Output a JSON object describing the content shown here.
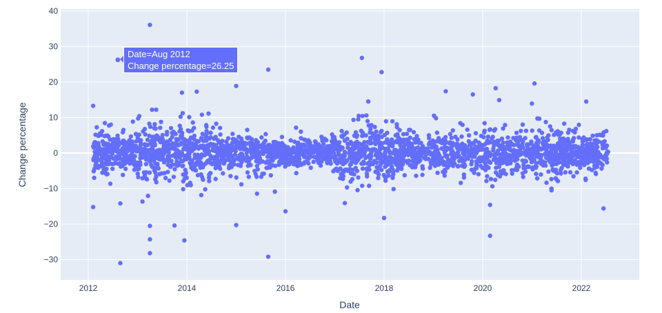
{
  "chart_data": {
    "type": "scatter",
    "title": "",
    "xlabel": "Date",
    "ylabel": "Change percentage",
    "x_tick_labels": [
      "2012",
      "2014",
      "2016",
      "2018",
      "2020",
      "2022"
    ],
    "y_tick_labels": [
      "40",
      "30",
      "20",
      "10",
      "0",
      "−10",
      "−20",
      "−30"
    ],
    "y_ticks": [
      40,
      30,
      20,
      10,
      0,
      -10,
      -20,
      -30
    ],
    "x_ticks": [
      2012,
      2014,
      2016,
      2018,
      2020,
      2022
    ],
    "xlim": [
      2011.45,
      2023.15
    ],
    "ylim": [
      -35.5,
      40.6
    ],
    "grid": true,
    "legend": false,
    "series": [
      {
        "name": "Change percentage",
        "color": "#636efa",
        "x_range": [
          2012.1,
          2022.55
        ],
        "typical_band": [
          -7,
          7
        ],
        "notable_points": [
          {
            "x": 2013.25,
            "y": 36.1
          },
          {
            "x": 2012.6,
            "y": 26.25
          },
          {
            "x": 2017.55,
            "y": 26.8
          },
          {
            "x": 2015.65,
            "y": 23.5
          },
          {
            "x": 2017.95,
            "y": 22.8
          },
          {
            "x": 2021.05,
            "y": 19.6
          },
          {
            "x": 2015.0,
            "y": 18.9
          },
          {
            "x": 2019.25,
            "y": 17.4
          },
          {
            "x": 2013.9,
            "y": 17.0
          },
          {
            "x": 2014.2,
            "y": 17.3
          },
          {
            "x": 2019.8,
            "y": 16.5
          },
          {
            "x": 2022.1,
            "y": 14.5
          },
          {
            "x": 2012.1,
            "y": 13.3
          },
          {
            "x": 2012.65,
            "y": -31.0
          },
          {
            "x": 2015.65,
            "y": -29.2
          },
          {
            "x": 2013.25,
            "y": -28.2
          },
          {
            "x": 2013.25,
            "y": -24.3
          },
          {
            "x": 2013.95,
            "y": -24.6
          },
          {
            "x": 2020.15,
            "y": -23.3
          },
          {
            "x": 2015.0,
            "y": -20.3
          },
          {
            "x": 2013.25,
            "y": -20.5
          },
          {
            "x": 2013.75,
            "y": -20.4
          },
          {
            "x": 2018.0,
            "y": -18.3
          },
          {
            "x": 2016.0,
            "y": -16.4
          },
          {
            "x": 2012.1,
            "y": -15.2
          },
          {
            "x": 2022.45,
            "y": -15.6
          },
          {
            "x": 2020.15,
            "y": -14.6
          },
          {
            "x": 2012.65,
            "y": -14.2
          }
        ]
      }
    ],
    "hover": {
      "x": 2012.6,
      "y": 26.25,
      "lines": [
        "Date=Aug 2012",
        "Change percentage=26.25"
      ]
    }
  },
  "colors": {
    "plot_bg": "#e5ecf6",
    "grid": "#ffffff",
    "marker": "#636efa",
    "text": "#2a3f5f"
  }
}
